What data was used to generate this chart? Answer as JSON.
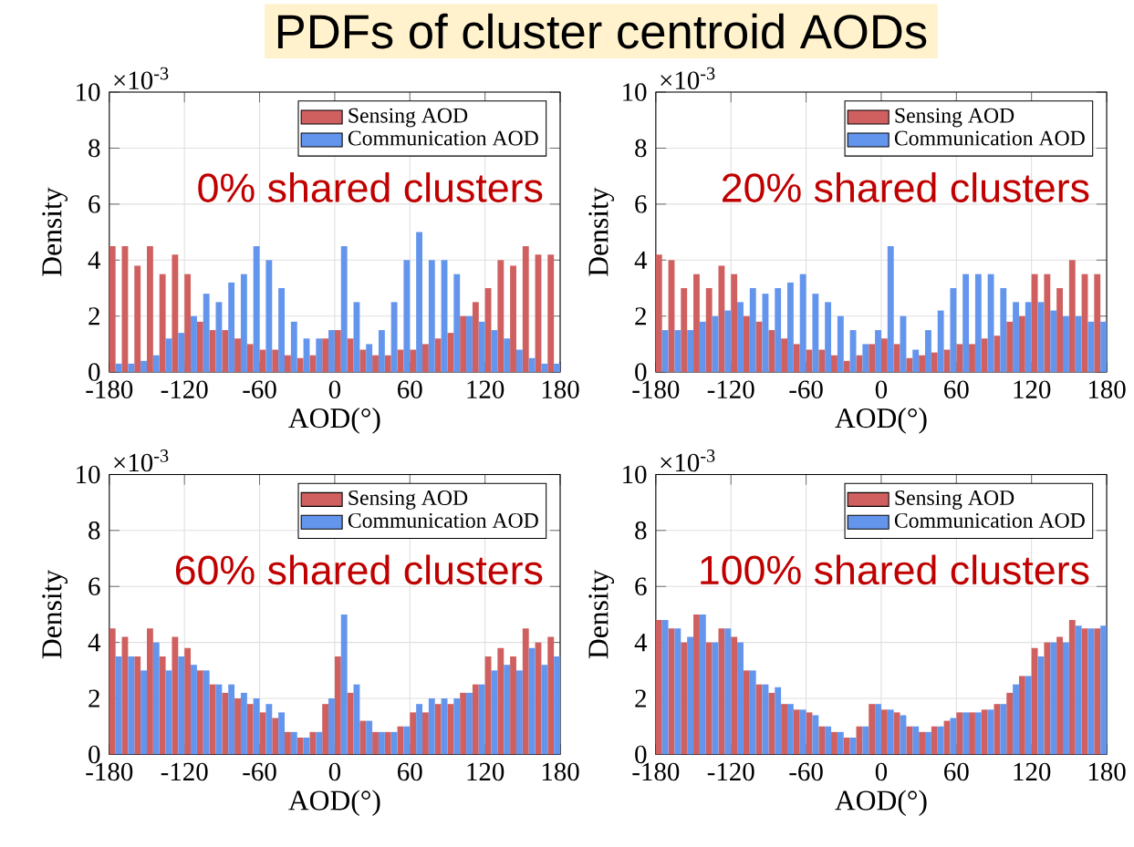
{
  "chart_data": [
    {
      "type": "histogram",
      "title": "PDFs of cluster centroid AODs",
      "xlabel": "AOD(°)",
      "ylabel": "Density",
      "annotations": [
        "×10$^{-3}$",
        "0% shared clusters"
      ],
      "bins": [
        -180,
        -170,
        -160,
        -150,
        -140,
        -130,
        -120,
        -110,
        -100,
        -90,
        -80,
        -70,
        -60,
        -50,
        -40,
        -30,
        -20,
        -10,
        0,
        10,
        20,
        30,
        40,
        50,
        60,
        70,
        80,
        90,
        100,
        110,
        120,
        130,
        140,
        150,
        160,
        170,
        180
      ],
      "series": [
        {
          "name": "Sensing AOD",
          "color": "#d06060",
          "values": [
            4.5,
            4.5,
            3.8,
            4.5,
            3.5,
            4.2,
            3.5,
            1.8,
            1.5,
            1.5,
            1.2,
            1.0,
            0.8,
            0.8,
            0.6,
            0.5,
            0.6,
            1.2,
            1.5,
            1.2,
            0.8,
            0.6,
            0.6,
            0.8,
            0.8,
            1.0,
            1.2,
            1.4,
            2.0,
            2.5,
            3.0,
            4.0,
            3.8,
            4.5,
            4.2,
            4.2
          ]
        },
        {
          "name": "Communication AOD",
          "color": "#6495ed",
          "values": [
            0.3,
            0.3,
            0.4,
            0.6,
            1.2,
            1.4,
            2.0,
            2.8,
            2.5,
            3.2,
            3.5,
            4.5,
            4.0,
            3.0,
            1.8,
            1.2,
            1.2,
            1.5,
            4.5,
            2.5,
            1.0,
            1.5,
            2.5,
            4.0,
            5.0,
            4.0,
            4.0,
            3.5,
            2.0,
            1.8,
            1.5,
            1.2,
            0.8,
            0.5,
            0.3,
            0.3
          ]
        }
      ],
      "xlim": [
        -180,
        180
      ],
      "xticks": [
        -180,
        -120,
        -60,
        0,
        60,
        120,
        180
      ],
      "ylim": [
        0,
        10
      ],
      "yticks": [
        0,
        2,
        4,
        6,
        8,
        10
      ],
      "grid": true,
      "legend": "top right"
    },
    {
      "type": "histogram",
      "xlabel": "AOD(°)",
      "ylabel": "Density",
      "annotations": [
        "×10$^{-3}$",
        "20% shared clusters"
      ],
      "bins": [
        -180,
        -170,
        -160,
        -150,
        -140,
        -130,
        -120,
        -110,
        -100,
        -90,
        -80,
        -70,
        -60,
        -50,
        -40,
        -30,
        -20,
        -10,
        0,
        10,
        20,
        30,
        40,
        50,
        60,
        70,
        80,
        90,
        100,
        110,
        120,
        130,
        140,
        150,
        160,
        170,
        180
      ],
      "series": [
        {
          "name": "Sensing AOD",
          "color": "#d06060",
          "values": [
            4.2,
            4.0,
            3.0,
            3.5,
            3.0,
            3.8,
            3.5,
            2.0,
            1.8,
            1.5,
            1.2,
            1.0,
            0.8,
            0.8,
            0.6,
            0.4,
            0.6,
            1.0,
            1.2,
            1.0,
            0.5,
            0.6,
            0.7,
            0.8,
            1.0,
            1.0,
            1.2,
            1.3,
            1.8,
            2.0,
            3.5,
            3.5,
            3.0,
            4.0,
            3.5,
            3.5
          ]
        },
        {
          "name": "Communication AOD",
          "color": "#6495ed",
          "values": [
            1.5,
            1.5,
            1.5,
            1.8,
            2.0,
            2.2,
            2.5,
            3.0,
            2.8,
            3.0,
            3.2,
            3.5,
            2.8,
            2.5,
            2.0,
            1.5,
            1.0,
            1.5,
            4.5,
            2.0,
            0.8,
            1.5,
            2.2,
            3.0,
            3.5,
            3.5,
            3.5,
            3.0,
            2.5,
            2.5,
            2.5,
            2.2,
            2.0,
            2.0,
            1.8,
            1.8
          ]
        }
      ],
      "xlim": [
        -180,
        180
      ],
      "xticks": [
        -180,
        -120,
        -60,
        0,
        60,
        120,
        180
      ],
      "ylim": [
        0,
        10
      ],
      "yticks": [
        0,
        2,
        4,
        6,
        8,
        10
      ],
      "grid": true,
      "legend": "top right"
    },
    {
      "type": "histogram",
      "xlabel": "AOD(°)",
      "ylabel": "Density",
      "annotations": [
        "×10$^{-3}$",
        "60% shared clusters"
      ],
      "bins": [
        -180,
        -170,
        -160,
        -150,
        -140,
        -130,
        -120,
        -110,
        -100,
        -90,
        -80,
        -70,
        -60,
        -50,
        -40,
        -30,
        -20,
        -10,
        0,
        10,
        20,
        30,
        40,
        50,
        60,
        70,
        80,
        90,
        100,
        110,
        120,
        130,
        140,
        150,
        160,
        170,
        180
      ],
      "series": [
        {
          "name": "Sensing AOD",
          "color": "#d06060",
          "values": [
            4.5,
            4.2,
            3.5,
            4.5,
            3.5,
            4.2,
            3.8,
            3.0,
            2.5,
            2.2,
            2.0,
            1.8,
            1.5,
            1.3,
            0.8,
            0.6,
            0.8,
            1.8,
            3.5,
            2.2,
            1.2,
            0.8,
            0.8,
            1.0,
            1.5,
            1.5,
            1.8,
            1.8,
            2.2,
            2.5,
            3.5,
            3.8,
            3.5,
            4.5,
            4.0,
            4.2
          ]
        },
        {
          "name": "Communication AOD",
          "color": "#6495ed",
          "values": [
            3.5,
            3.5,
            3.0,
            4.0,
            3.0,
            3.5,
            3.2,
            3.0,
            2.5,
            2.5,
            2.2,
            2.0,
            1.8,
            1.5,
            0.8,
            0.6,
            0.8,
            2.0,
            5.0,
            2.5,
            1.2,
            0.8,
            0.8,
            1.0,
            1.8,
            2.0,
            2.0,
            2.0,
            2.2,
            2.5,
            3.0,
            3.2,
            3.0,
            3.8,
            3.2,
            3.5
          ]
        }
      ],
      "xlim": [
        -180,
        180
      ],
      "xticks": [
        -180,
        -120,
        -60,
        0,
        60,
        120,
        180
      ],
      "ylim": [
        0,
        10
      ],
      "yticks": [
        0,
        2,
        4,
        6,
        8,
        10
      ],
      "grid": true,
      "legend": "top right"
    },
    {
      "type": "histogram",
      "xlabel": "AOD(°)",
      "ylabel": "Density",
      "annotations": [
        "×10$^{-3}$",
        "100% shared clusters"
      ],
      "bins": [
        -180,
        -170,
        -160,
        -150,
        -140,
        -130,
        -120,
        -110,
        -100,
        -90,
        -80,
        -70,
        -60,
        -50,
        -40,
        -30,
        -20,
        -10,
        0,
        10,
        20,
        30,
        40,
        50,
        60,
        70,
        80,
        90,
        100,
        110,
        120,
        130,
        140,
        150,
        160,
        170,
        180
      ],
      "series": [
        {
          "name": "Sensing AOD",
          "color": "#d06060",
          "values": [
            4.8,
            4.5,
            4.0,
            5.0,
            4.0,
            4.5,
            4.2,
            3.0,
            2.5,
            2.2,
            1.8,
            1.6,
            1.5,
            1.0,
            0.8,
            0.6,
            1.0,
            1.8,
            1.6,
            1.5,
            1.0,
            0.8,
            1.0,
            1.2,
            1.5,
            1.5,
            1.6,
            1.8,
            2.2,
            2.8,
            3.8,
            4.0,
            4.2,
            4.8,
            4.5,
            4.5
          ]
        },
        {
          "name": "Communication AOD",
          "color": "#6495ed",
          "values": [
            4.8,
            4.5,
            4.2,
            5.0,
            4.0,
            4.5,
            4.0,
            3.0,
            2.5,
            2.4,
            1.8,
            1.6,
            1.4,
            1.0,
            0.8,
            0.6,
            1.0,
            1.8,
            1.6,
            1.4,
            1.0,
            0.8,
            1.0,
            1.3,
            1.5,
            1.5,
            1.6,
            1.8,
            2.5,
            2.8,
            3.5,
            4.0,
            4.0,
            4.6,
            4.5,
            4.6
          ]
        }
      ],
      "xlim": [
        -180,
        180
      ],
      "xticks": [
        -180,
        -120,
        -60,
        0,
        60,
        120,
        180
      ],
      "ylim": [
        0,
        10
      ],
      "yticks": [
        0,
        2,
        4,
        6,
        8,
        10
      ],
      "grid": true,
      "legend": "top right"
    }
  ]
}
